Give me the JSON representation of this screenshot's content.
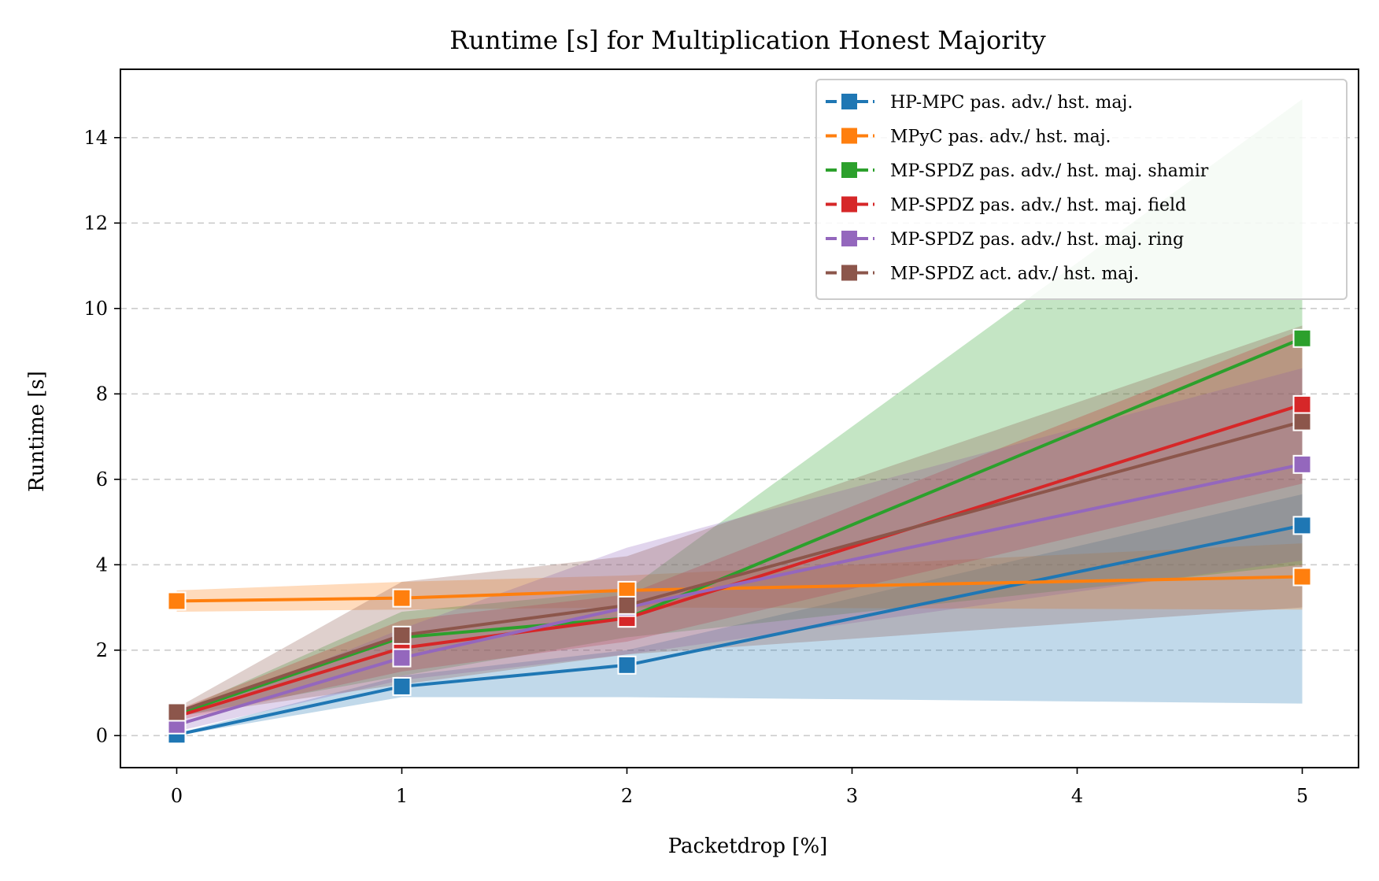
{
  "chart_data": {
    "type": "line",
    "title": "Runtime [s] for Multiplication Honest Majority",
    "xlabel": "Packetdrop [%]",
    "ylabel": "Runtime [s]",
    "x": [
      0,
      1,
      2,
      5
    ],
    "xticks": [
      "0",
      "1",
      "2",
      "3",
      "4",
      "5"
    ],
    "yticks": [
      "0",
      "2",
      "4",
      "6",
      "8",
      "10",
      "12",
      "14"
    ],
    "xlim": [
      -0.25,
      5.25
    ],
    "ylim": [
      -0.75,
      15.6
    ],
    "grid": "y-dashed",
    "legend_position": "top-right",
    "series": [
      {
        "name": "HP-MPC pas. adv./ hst. maj.",
        "color": "#1f77b4",
        "values": [
          0.02,
          1.15,
          1.65,
          4.92
        ],
        "band_low": [
          0.0,
          0.9,
          0.9,
          0.75
        ],
        "band_high": [
          0.05,
          1.4,
          2.0,
          5.65
        ]
      },
      {
        "name": "MPyC pas. adv./ hst. maj.",
        "color": "#ff7f0e",
        "values": [
          3.15,
          3.22,
          3.4,
          3.72
        ],
        "band_low": [
          2.9,
          2.95,
          3.0,
          2.95
        ],
        "band_high": [
          3.4,
          3.6,
          3.75,
          4.5
        ]
      },
      {
        "name": "MP-SPDZ pas. adv./ hst. maj. shamir",
        "color": "#2ca02c",
        "values": [
          0.5,
          2.3,
          2.75,
          9.3
        ],
        "band_low": [
          0.45,
          1.4,
          2.3,
          4.0
        ],
        "band_high": [
          0.55,
          2.9,
          3.4,
          14.9
        ]
      },
      {
        "name": "MP-SPDZ pas. adv./ hst. maj. field",
        "color": "#d62728",
        "values": [
          0.45,
          2.05,
          2.75,
          7.75
        ],
        "band_low": [
          0.35,
          1.5,
          2.2,
          5.9
        ],
        "band_high": [
          0.6,
          2.7,
          3.3,
          9.5
        ]
      },
      {
        "name": "MP-SPDZ pas. adv./ hst. maj. ring",
        "color": "#9467bd",
        "values": [
          0.25,
          1.82,
          3.0,
          6.35
        ],
        "band_low": [
          0.1,
          1.3,
          1.9,
          4.1
        ],
        "band_high": [
          0.4,
          2.5,
          4.4,
          8.6
        ]
      },
      {
        "name": "MP-SPDZ act. adv./ hst. maj.",
        "color": "#8c564b",
        "values": [
          0.55,
          2.35,
          3.05,
          7.35
        ],
        "band_low": [
          0.45,
          1.2,
          1.9,
          3.0
        ],
        "band_high": [
          0.65,
          3.6,
          4.2,
          9.6
        ]
      }
    ]
  }
}
